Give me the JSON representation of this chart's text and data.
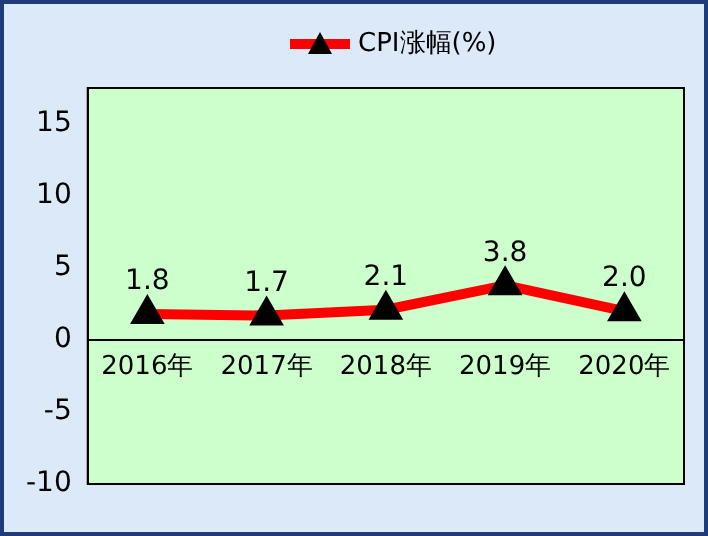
{
  "chart_data": {
    "type": "line",
    "categories": [
      "2016年",
      "2017年",
      "2018年",
      "2019年",
      "2020年"
    ],
    "series": [
      {
        "name": "CPI涨幅(%)",
        "color": "#ff0000",
        "values": [
          1.8,
          1.7,
          2.1,
          3.8,
          2.0
        ],
        "value_labels": [
          "1.8",
          "1.7",
          "2.1",
          "3.8",
          "2.0"
        ]
      }
    ],
    "ylim": [
      -10,
      17.5
    ],
    "yticks": [
      -10,
      -5,
      0,
      5,
      10,
      15
    ],
    "grid": false,
    "legend": "top",
    "marker": "triangle",
    "line_style": "solid"
  }
}
